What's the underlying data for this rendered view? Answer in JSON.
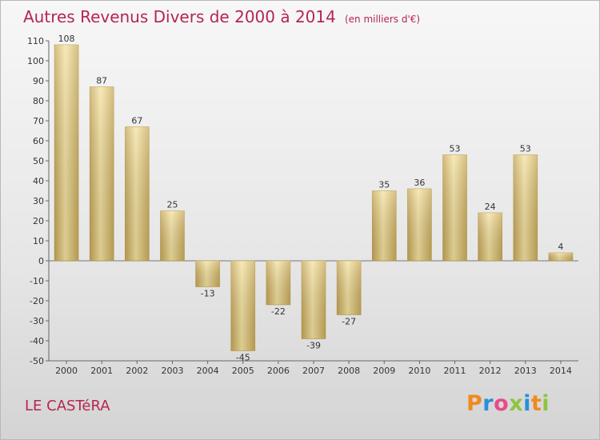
{
  "header": {
    "title": "Autres Revenus Divers de 2000 à 2014",
    "unit": "(en milliers d'€)"
  },
  "footer": {
    "commune": "LE CASTéRA",
    "brand": "Proxiti",
    "brand_colors": [
      "#f08a1c",
      "#2a8fd8",
      "#e84b8a",
      "#8cc63f",
      "#2a8fd8",
      "#f08a1c",
      "#8cc63f"
    ]
  },
  "colors": {
    "title": "#b5264f",
    "bar_light": "#f4e2a0",
    "bar_dark": "#c8aa58"
  },
  "chart_data": {
    "type": "bar",
    "title": "Autres Revenus Divers de 2000 à 2014",
    "subtitle": "(en milliers d'€)",
    "categories": [
      "2000",
      "2001",
      "2002",
      "2003",
      "2004",
      "2005",
      "2006",
      "2007",
      "2008",
      "2009",
      "2010",
      "2011",
      "2012",
      "2013",
      "2014"
    ],
    "values": [
      108,
      87,
      67,
      25,
      -13,
      -45,
      -22,
      -39,
      -27,
      35,
      36,
      53,
      24,
      53,
      4
    ],
    "ylim": [
      -50,
      110
    ],
    "yticks": [
      -50,
      -40,
      -30,
      -20,
      -10,
      0,
      10,
      20,
      30,
      40,
      50,
      60,
      70,
      80,
      90,
      100,
      110
    ],
    "grid": false,
    "legend": "none"
  }
}
